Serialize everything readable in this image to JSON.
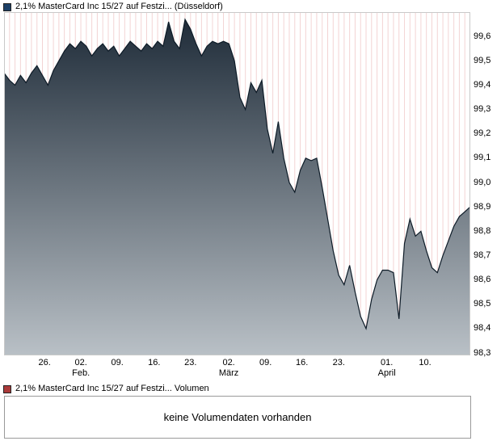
{
  "price_chart": {
    "legend": {
      "label": "2,1% MasterCard Inc 15/27 auf Festzi... (Düsseldorf)",
      "marker_color": "#1c3f66"
    }
  },
  "volume_section": {
    "legend": {
      "label": "2,1% MasterCard Inc 15/27 auf Festzi... Volumen",
      "marker_color": "#aa3a3a"
    },
    "empty_message": "keine Volumendaten vorhanden"
  },
  "chart_data": {
    "type": "area",
    "title": "2,1% MasterCard Inc 15/27 auf Festzi... (Düsseldorf)",
    "xlabel": "",
    "ylabel": "",
    "ylim": [
      98.29,
      99.7
    ],
    "legend_position": "top-left",
    "grid": "vertical-daily-pink",
    "y_ticks": [
      {
        "label": "99,6",
        "value": 99.6
      },
      {
        "label": "99,5",
        "value": 99.5
      },
      {
        "label": "99,4",
        "value": 99.4
      },
      {
        "label": "99,3",
        "value": 99.3
      },
      {
        "label": "99,2",
        "value": 99.2
      },
      {
        "label": "99,1",
        "value": 99.1
      },
      {
        "label": "99,0",
        "value": 99.0
      },
      {
        "label": "98,9",
        "value": 98.9
      },
      {
        "label": "98,8",
        "value": 98.8
      },
      {
        "label": "98,7",
        "value": 98.7
      },
      {
        "label": "98,6",
        "value": 98.6
      },
      {
        "label": "98,5",
        "value": 98.5
      },
      {
        "label": "98,4",
        "value": 98.4
      },
      {
        "label": "98,3",
        "value": 98.3
      }
    ],
    "x_ticks": [
      {
        "label": "26.",
        "pos": 0.087
      },
      {
        "label": "02.",
        "pos": 0.165
      },
      {
        "label": "09.",
        "pos": 0.243
      },
      {
        "label": "16.",
        "pos": 0.322
      },
      {
        "label": "23.",
        "pos": 0.4
      },
      {
        "label": "02.",
        "pos": 0.482
      },
      {
        "label": "09.",
        "pos": 0.561
      },
      {
        "label": "16.",
        "pos": 0.639
      },
      {
        "label": "23.",
        "pos": 0.718
      },
      {
        "label": "01.",
        "pos": 0.821
      },
      {
        "label": "10.",
        "pos": 0.903
      }
    ],
    "month_labels": [
      {
        "label": "Feb.",
        "pos": 0.165
      },
      {
        "label": "März",
        "pos": 0.482
      },
      {
        "label": "April",
        "pos": 0.821
      }
    ],
    "values": [
      99.45,
      99.42,
      99.4,
      99.44,
      99.41,
      99.45,
      99.48,
      99.44,
      99.4,
      99.46,
      99.5,
      99.54,
      99.57,
      99.55,
      99.58,
      99.56,
      99.52,
      99.55,
      99.57,
      99.54,
      99.56,
      99.52,
      99.55,
      99.58,
      99.56,
      99.54,
      99.57,
      99.55,
      99.58,
      99.56,
      99.66,
      99.58,
      99.55,
      99.67,
      99.63,
      99.57,
      99.52,
      99.56,
      99.58,
      99.57,
      99.58,
      99.57,
      99.5,
      99.35,
      99.3,
      99.41,
      99.37,
      99.42,
      99.22,
      99.12,
      99.25,
      99.1,
      99.0,
      98.96,
      99.05,
      99.1,
      99.09,
      99.1,
      98.98,
      98.85,
      98.72,
      98.62,
      98.58,
      98.66,
      98.55,
      98.45,
      98.4,
      98.52,
      98.6,
      98.64,
      98.64,
      98.63,
      98.44,
      98.75,
      98.85,
      98.78,
      98.8,
      98.72,
      98.65,
      98.63,
      98.7,
      98.76,
      98.82,
      98.86,
      98.88,
      98.9
    ],
    "colors": {
      "line": "#0d1b27",
      "fill_top": "#1f2c39",
      "fill_bottom": "#b9c0c6",
      "grid": "#f3d4d4",
      "border": "#c9c9c9"
    }
  }
}
